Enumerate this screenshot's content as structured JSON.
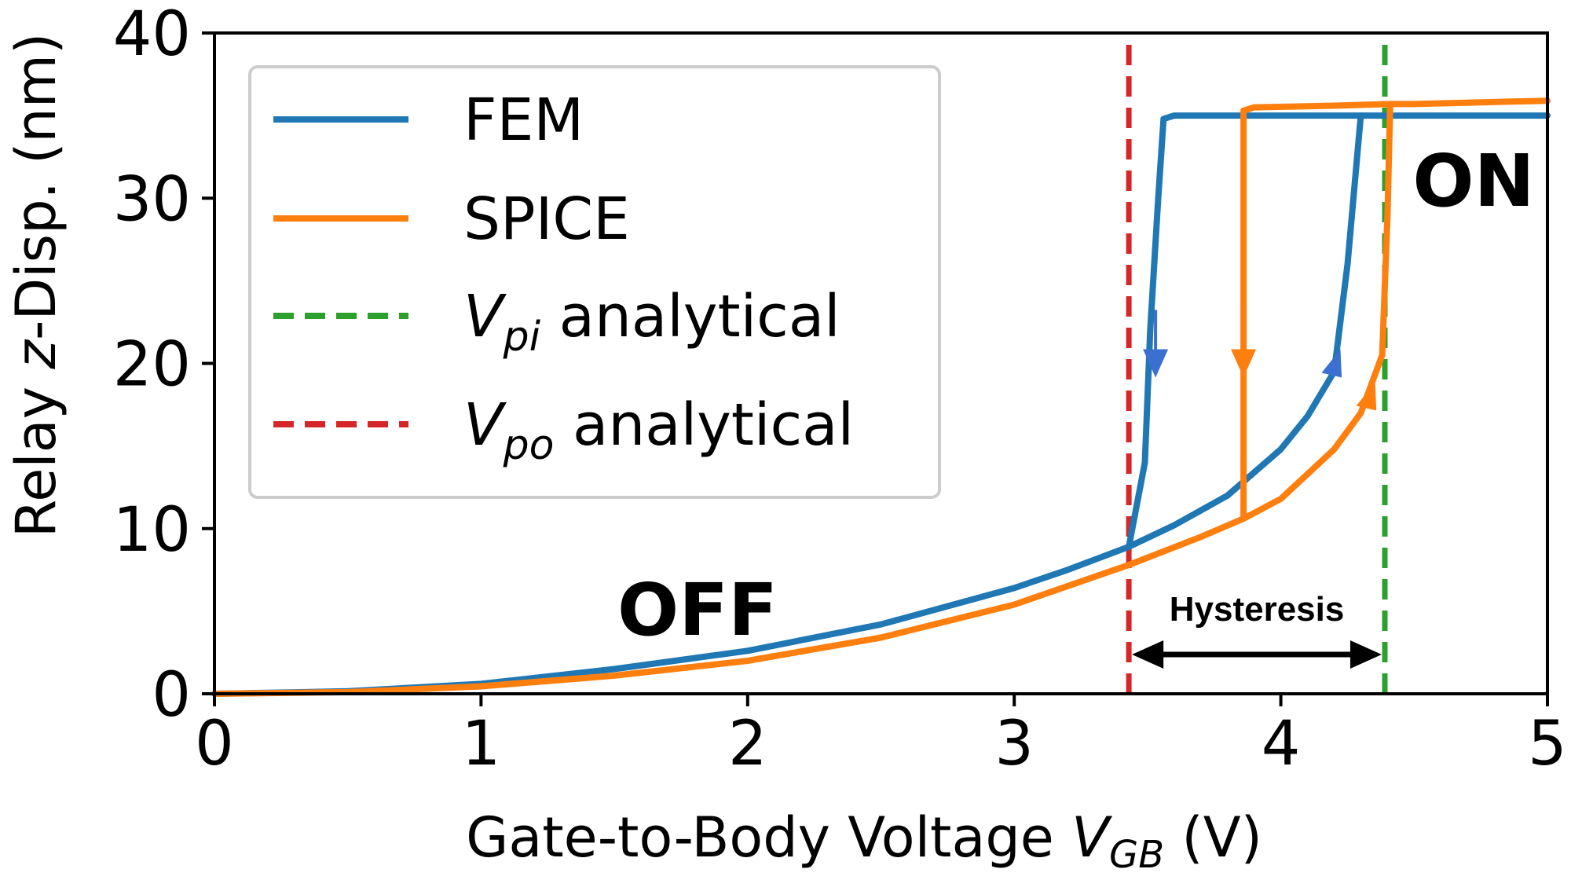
{
  "chart_data": {
    "type": "line",
    "xlabel": {
      "prefix": "Gate-to-Body Voltage ",
      "var": "V",
      "sub": "GB",
      "suffix": " (V)"
    },
    "ylabel": {
      "prefix": "Relay ",
      "var": "z",
      "suffix": "-Disp. (nm)"
    },
    "xlim": [
      0,
      5
    ],
    "ylim": [
      0,
      40
    ],
    "xticks": [
      "0",
      "1",
      "2",
      "3",
      "4",
      "5"
    ],
    "yticks": [
      "0",
      "10",
      "20",
      "30",
      "40"
    ],
    "grid": false,
    "legend_position": "top-left",
    "colors": {
      "fem": "#1f77b4",
      "spice": "#ff7f0e",
      "vpi": "#2ca02c",
      "vpo": "#d62728"
    },
    "series": [
      {
        "name": "FEM",
        "color": "#1f77b4",
        "x": [
          0,
          0.5,
          1.0,
          1.5,
          2.0,
          2.5,
          3.0,
          3.2,
          3.43,
          3.6,
          3.8,
          4.0,
          4.1,
          4.2,
          4.25,
          4.3,
          4.3,
          4.5,
          5.0
        ],
        "y": [
          0,
          0.15,
          0.6,
          1.5,
          2.6,
          4.2,
          6.4,
          7.5,
          8.9,
          10.2,
          12.0,
          14.8,
          16.8,
          19.5,
          26.0,
          35.0,
          35.0,
          35.0,
          35.0
        ]
      },
      {
        "name": "FEM",
        "color": "#1f77b4",
        "x": [
          3.43,
          3.49,
          3.51,
          3.54,
          3.56,
          3.6,
          4.0,
          4.3
        ],
        "y": [
          8.9,
          14.0,
          22.0,
          30.0,
          34.8,
          35.0,
          35.0,
          35.0
        ]
      },
      {
        "name": "SPICE",
        "color": "#ff7f0e",
        "x": [
          0,
          0.5,
          1.0,
          1.5,
          2.0,
          2.5,
          3.0,
          3.43,
          3.7,
          3.86,
          4.0,
          4.2,
          4.3,
          4.38,
          4.4,
          4.41,
          4.5,
          5.0
        ],
        "y": [
          0,
          0.1,
          0.45,
          1.1,
          2.0,
          3.4,
          5.4,
          7.8,
          9.5,
          10.6,
          11.8,
          14.8,
          17.0,
          20.5,
          29.0,
          35.7,
          35.7,
          35.9
        ]
      },
      {
        "name": "SPICE",
        "color": "#ff7f0e",
        "x": [
          3.86,
          3.86,
          3.9,
          4.2,
          4.41
        ],
        "y": [
          10.6,
          35.3,
          35.5,
          35.6,
          35.7
        ]
      },
      {
        "name": "Vpi analytical",
        "color": "#2ca02c",
        "dashed": true,
        "x": [
          4.39,
          4.39
        ],
        "y": [
          0,
          40
        ]
      },
      {
        "name": "Vpo analytical",
        "color": "#d62728",
        "dashed": true,
        "x": [
          3.43,
          3.43
        ],
        "y": [
          0,
          40
        ]
      }
    ],
    "arrows": [
      {
        "x": 3.53,
        "y": 20,
        "direction": "down",
        "color": "#3b6fd0"
      },
      {
        "x": 3.86,
        "y": 20,
        "direction": "down",
        "color": "#ff7f0e"
      },
      {
        "x": 4.2,
        "y": 20,
        "direction": "up",
        "color": "#3b6fd0"
      },
      {
        "x": 4.33,
        "y": 18,
        "direction": "up",
        "color": "#ff7f0e"
      }
    ],
    "legend": [
      {
        "text": "FEM",
        "color": "#1f77b4",
        "dashed": false
      },
      {
        "text": "SPICE",
        "color": "#ff7f0e",
        "dashed": false
      },
      {
        "var": "V",
        "sub": "pi",
        "text": " analytical",
        "color": "#2ca02c",
        "dashed": true
      },
      {
        "var": "V",
        "sub": "po",
        "text": " analytical",
        "color": "#d62728",
        "dashed": true
      }
    ],
    "annotations": {
      "off": "OFF",
      "on": "ON",
      "hysteresis": "Hysteresis",
      "hysteresis_range": [
        3.43,
        4.39
      ]
    }
  }
}
